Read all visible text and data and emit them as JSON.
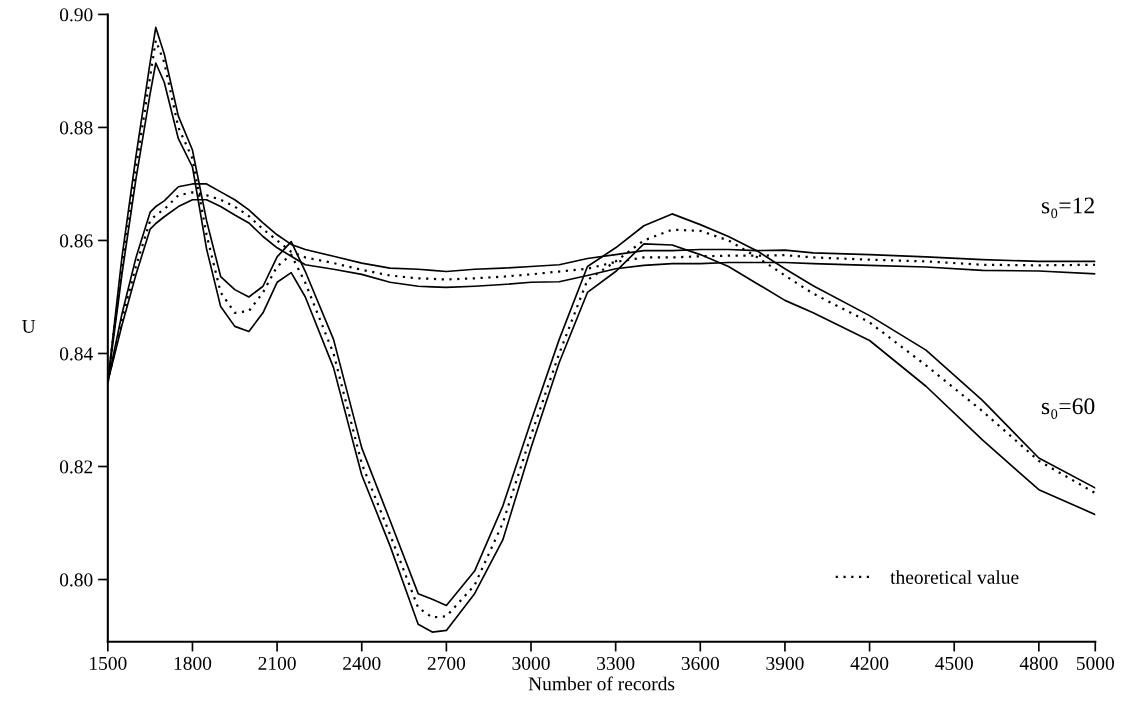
{
  "chart_data": {
    "type": "line",
    "xlabel": "Number of records",
    "ylabel": "U",
    "x": [
      1500,
      1550,
      1600,
      1650,
      1670,
      1700,
      1750,
      1800,
      1850,
      1900,
      1950,
      2000,
      2050,
      2100,
      2150,
      2200,
      2300,
      2400,
      2500,
      2600,
      2650,
      2700,
      2800,
      2900,
      3000,
      3100,
      3200,
      3300,
      3400,
      3500,
      3600,
      3700,
      3800,
      3900,
      4000,
      4200,
      4400,
      4600,
      4800,
      5000
    ],
    "series": [
      {
        "color": "#000000",
        "line_style": "solid",
        "values": [
          0.835,
          0.847,
          0.857,
          0.865,
          0.866,
          0.867,
          0.8695,
          0.87,
          0.87,
          0.8686,
          0.8672,
          0.8654,
          0.8631,
          0.861,
          0.8593,
          0.8584,
          0.8572,
          0.856,
          0.8551,
          0.8549,
          0.8547,
          0.8545,
          0.8549,
          0.8551,
          0.8554,
          0.8557,
          0.8568,
          0.8575,
          0.8582,
          0.8582,
          0.8584,
          0.8584,
          0.8582,
          0.8583,
          0.8578,
          0.8575,
          0.8571,
          0.8566,
          0.8563,
          0.8563
        ]
      },
      {
        "name": "theoretical value",
        "color": "#000000",
        "line_style": "dotted",
        "values": [
          0.835,
          0.846,
          0.8555,
          0.8635,
          0.8645,
          0.8655,
          0.868,
          0.8685,
          0.868,
          0.8672,
          0.866,
          0.8643,
          0.862,
          0.86,
          0.858,
          0.857,
          0.856,
          0.8548,
          0.8538,
          0.8533,
          0.8532,
          0.8531,
          0.8533,
          0.8536,
          0.854,
          0.8545,
          0.855,
          0.8562,
          0.857,
          0.857,
          0.8572,
          0.8573,
          0.8573,
          0.8574,
          0.857,
          0.8566,
          0.8563,
          0.8557,
          0.8556,
          0.8557
        ]
      },
      {
        "color": "#000000",
        "line_style": "solid",
        "values": [
          0.835,
          0.845,
          0.854,
          0.862,
          0.863,
          0.8642,
          0.866,
          0.8672,
          0.8672,
          0.866,
          0.8645,
          0.8631,
          0.8607,
          0.8587,
          0.8572,
          0.8557,
          0.8549,
          0.854,
          0.8526,
          0.8519,
          0.8518,
          0.8517,
          0.8519,
          0.8522,
          0.8526,
          0.8527,
          0.8538,
          0.855,
          0.8556,
          0.8559,
          0.8559,
          0.8561,
          0.8561,
          0.8561,
          0.8559,
          0.8556,
          0.8553,
          0.8547,
          0.8546,
          0.8541
        ]
      },
      {
        "color": "#000000",
        "line_style": "solid",
        "values": [
          0.835,
          0.857,
          0.875,
          0.8915,
          0.8977,
          0.893,
          0.882,
          0.876,
          0.8635,
          0.8536,
          0.8513,
          0.85,
          0.8519,
          0.8571,
          0.8598,
          0.8545,
          0.8425,
          0.8233,
          0.8105,
          0.7975,
          0.7965,
          0.7954,
          0.8015,
          0.813,
          0.828,
          0.8425,
          0.8554,
          0.8587,
          0.8626,
          0.8647,
          0.8628,
          0.8607,
          0.8582,
          0.855,
          0.852,
          0.8467,
          0.8406,
          0.8317,
          0.8215,
          0.8162
        ]
      },
      {
        "color": "#000000",
        "line_style": "dotted",
        "values": [
          0.835,
          0.8555,
          0.873,
          0.889,
          0.8954,
          0.8915,
          0.88,
          0.8745,
          0.861,
          0.8508,
          0.8472,
          0.8475,
          0.8508,
          0.8554,
          0.8575,
          0.8525,
          0.84,
          0.8205,
          0.808,
          0.795,
          0.7933,
          0.7935,
          0.799,
          0.81,
          0.8255,
          0.84,
          0.853,
          0.8563,
          0.86,
          0.8619,
          0.8617,
          0.86,
          0.8571,
          0.8538,
          0.8506,
          0.8455,
          0.8379,
          0.8298,
          0.821,
          0.8153
        ]
      },
      {
        "color": "#000000",
        "line_style": "solid",
        "values": [
          0.835,
          0.854,
          0.871,
          0.886,
          0.8914,
          0.888,
          0.878,
          0.873,
          0.8585,
          0.8483,
          0.8448,
          0.8439,
          0.8472,
          0.8526,
          0.8543,
          0.85,
          0.8375,
          0.8185,
          0.806,
          0.7921,
          0.7907,
          0.791,
          0.7975,
          0.807,
          0.8233,
          0.8384,
          0.8508,
          0.8545,
          0.8594,
          0.8592,
          0.8575,
          0.8554,
          0.8524,
          0.8494,
          0.8472,
          0.8423,
          0.8342,
          0.8247,
          0.8159,
          0.8115
        ]
      }
    ],
    "annotations": [
      "s₀=12",
      "s₀=60"
    ],
    "xlim": [
      1500,
      5000
    ],
    "xticks": [
      1500,
      1800,
      2100,
      2400,
      2700,
      3000,
      3300,
      3600,
      3900,
      4200,
      4500,
      4800,
      5000
    ],
    "ylim": [
      0.789,
      0.9
    ],
    "yticks": [
      {
        "value": 0.8,
        "label": "0.80"
      },
      {
        "value": 0.82,
        "label": "0.82"
      },
      {
        "value": 0.84,
        "label": "0.84"
      },
      {
        "value": 0.86,
        "label": "0.86"
      },
      {
        "value": 0.88,
        "label": "0.88"
      },
      {
        "value": 0.9,
        "label": "0.90"
      }
    ],
    "legend": "bottom right"
  }
}
